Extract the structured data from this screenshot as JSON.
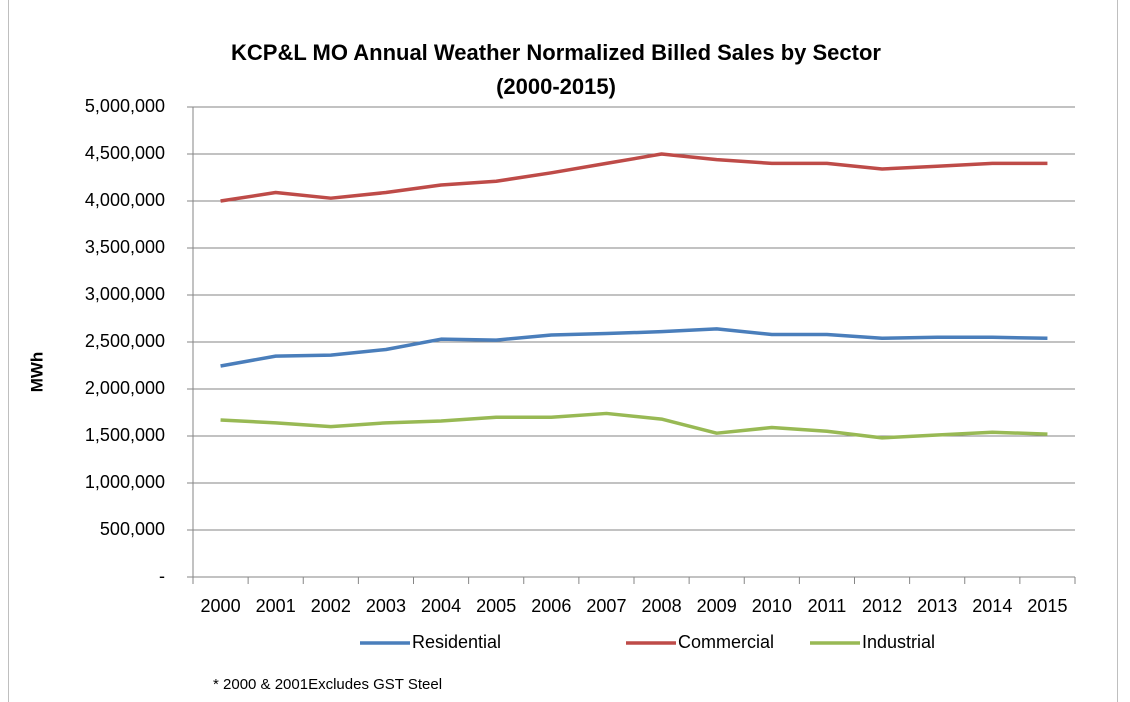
{
  "chart_data": {
    "type": "line",
    "title_lines": [
      "KCP&L MO Annual Weather Normalized Billed Sales by Sector",
      "(2000-2015)"
    ],
    "y_label": "MWh",
    "note": "* 2000 & 2001Excludes GST Steel",
    "categories": [
      "2000",
      "2001",
      "2002",
      "2003",
      "2004",
      "2005",
      "2006",
      "2007",
      "2008",
      "2009",
      "2010",
      "2011",
      "2012",
      "2013",
      "2014",
      "2015"
    ],
    "series": [
      {
        "name": "Residential",
        "color": "#4a7ebb",
        "values": [
          2245000,
          2350000,
          2360000,
          2420000,
          2530000,
          2520000,
          2575000,
          2590000,
          2610000,
          2640000,
          2580000,
          2580000,
          2540000,
          2550000,
          2550000,
          2540000
        ]
      },
      {
        "name": "Commercial",
        "color": "#be4b48",
        "values": [
          4000000,
          4090000,
          4030000,
          4090000,
          4170000,
          4210000,
          4300000,
          4400000,
          4500000,
          4440000,
          4400000,
          4400000,
          4340000,
          4370000,
          4400000,
          4400000
        ]
      },
      {
        "name": "Industrial",
        "color": "#98b954",
        "values": [
          1670000,
          1640000,
          1600000,
          1640000,
          1660000,
          1700000,
          1700000,
          1740000,
          1680000,
          1530000,
          1590000,
          1550000,
          1480000,
          1510000,
          1540000,
          1520000
        ]
      }
    ],
    "ylim": [
      0,
      5000000
    ],
    "yticks": [
      {
        "value": 0,
        "label": "-"
      },
      {
        "value": 500000,
        "label": "500,000"
      },
      {
        "value": 1000000,
        "label": "1,000,000"
      },
      {
        "value": 1500000,
        "label": "1,500,000"
      },
      {
        "value": 2000000,
        "label": "2,000,000"
      },
      {
        "value": 2500000,
        "label": "2,500,000"
      },
      {
        "value": 3000000,
        "label": "3,000,000"
      },
      {
        "value": 3500000,
        "label": "3,500,000"
      },
      {
        "value": 4000000,
        "label": "4,000,000"
      },
      {
        "value": 4500000,
        "label": "4,500,000"
      },
      {
        "value": 5000000,
        "label": "5,000,000"
      }
    ],
    "grid": true,
    "legend": "bottom"
  }
}
